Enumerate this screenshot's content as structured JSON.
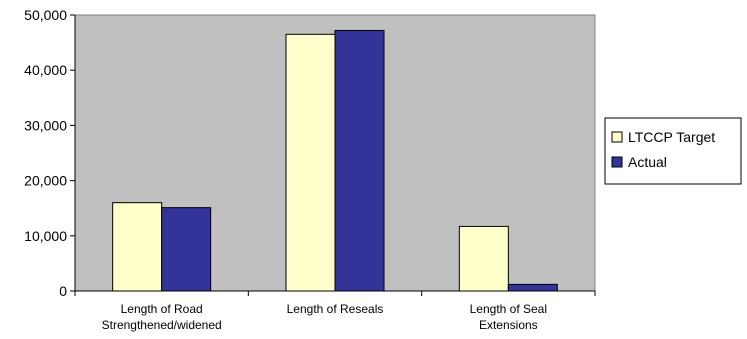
{
  "chart_data": {
    "type": "bar",
    "categories": [
      [
        "Length of Road",
        "Strengthened/widened"
      ],
      [
        "Length of Reseals"
      ],
      [
        "Length of Seal",
        "Extensions"
      ]
    ],
    "series": [
      {
        "name": "LTCCP Target",
        "values": [
          16000,
          46500,
          11700
        ],
        "color": "#ffffcc"
      },
      {
        "name": "Actual",
        "values": [
          15100,
          47200,
          1200
        ],
        "color": "#333399"
      }
    ],
    "yticks": [
      "0",
      "10,000",
      "20,000",
      "30,000",
      "40,000",
      "50,000"
    ],
    "ylim": [
      0,
      50000
    ],
    "title": "",
    "xlabel": "",
    "ylabel": "",
    "plot_background": "#c0c0c0",
    "grid": false,
    "legend_position": "right"
  }
}
